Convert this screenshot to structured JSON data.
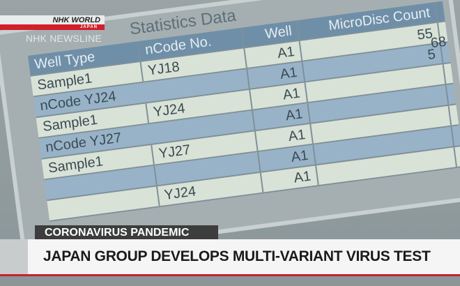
{
  "broadcast": {
    "brand_top": "NHK WORLD",
    "brand_bottom": "JAPAN",
    "program": "NHK NEWSLINE"
  },
  "lower_third": {
    "tag": "CORONAVIRUS PANDEMIC",
    "headline": "JAPAN GROUP DEVELOPS MULTI-VARIANT VIRUS TEST"
  },
  "screen": {
    "title": "Statistics Data",
    "headers": [
      "Well Type",
      "nCode No.",
      "Well",
      "MicroDisc Count"
    ],
    "rows": [
      {
        "type": "",
        "code": "",
        "well": "",
        "count": "68"
      },
      {
        "type": "Sample1",
        "code": "YJ18",
        "well": "A1",
        "count": "55"
      },
      {
        "group": "nCode YJ24",
        "well": "A1",
        "count": "5"
      },
      {
        "type": "Sample1",
        "code": "YJ24",
        "well": "A1",
        "count": ""
      },
      {
        "group": "nCode YJ27",
        "well": "A1",
        "count": ""
      },
      {
        "type": "Sample1",
        "code": "YJ27",
        "well": "A1",
        "count": ""
      },
      {
        "type": "",
        "code": "",
        "well": "A1",
        "count": ""
      },
      {
        "type": "",
        "code": "YJ24",
        "well": "A1",
        "count": ""
      }
    ]
  },
  "colors": {
    "red": "#d21f2b",
    "tag_bg": "#3d3d3d",
    "band_bg": "#f5f5f5"
  }
}
